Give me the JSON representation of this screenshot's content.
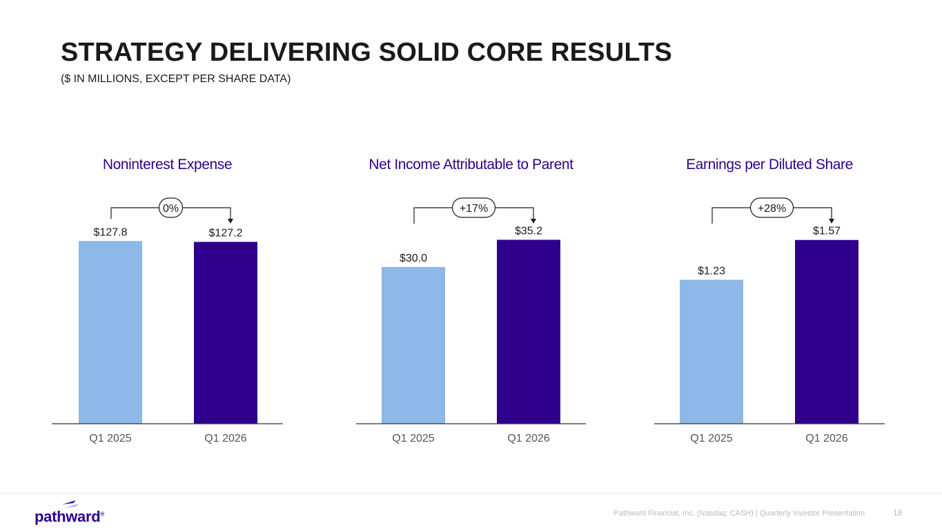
{
  "title": "STRATEGY DELIVERING SOLID CORE RESULTS",
  "subtitle": "($ IN MILLIONS, EXCEPT PER SHARE DATA)",
  "colors": {
    "prior": "#8db8e8",
    "current": "#2e008b",
    "title": "#2e008b",
    "axis": "#333333"
  },
  "chart_data": [
    {
      "type": "bar",
      "title": "Noninterest Expense",
      "categories": [
        "Q1 2025",
        "Q1 2026"
      ],
      "values": [
        127.8,
        127.2
      ],
      "value_labels": [
        "$127.8",
        "$127.2"
      ],
      "change_label": "0%",
      "ylim": [
        0,
        140
      ]
    },
    {
      "type": "bar",
      "title": "Net Income Attributable to Parent",
      "categories": [
        "Q1 2025",
        "Q1 2026"
      ],
      "values": [
        30.0,
        35.2
      ],
      "value_labels": [
        "$30.0",
        "$35.2"
      ],
      "change_label": "+17%",
      "ylim": [
        0,
        38.3
      ]
    },
    {
      "type": "bar",
      "title": "Earnings per Diluted Share",
      "categories": [
        "Q1 2025",
        "Q1 2026"
      ],
      "values": [
        1.23,
        1.57
      ],
      "value_labels": [
        "$1.23",
        "$1.57"
      ],
      "change_label": "+28%",
      "ylim": [
        0,
        1.71
      ]
    }
  ],
  "footer": {
    "logo_text": "pathward",
    "logo_mark": "®",
    "text": "Pathward Financial, Inc. (Nasdaq: CASH) | Quarterly Investor Presentation",
    "page": "18"
  }
}
